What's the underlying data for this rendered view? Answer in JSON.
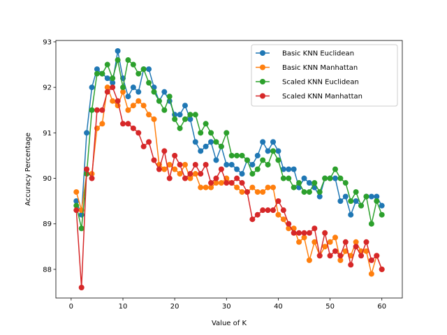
{
  "chart_data": {
    "type": "line",
    "title": "",
    "xlabel": "Value of K",
    "ylabel": "Accuracy Percentage",
    "xlim": [
      -2.95,
      63.95
    ],
    "ylim": [
      87.37,
      93.03
    ],
    "xticks": [
      0,
      10,
      20,
      30,
      40,
      50,
      60
    ],
    "yticks": [
      88,
      89,
      90,
      91,
      92,
      93
    ],
    "grid": false,
    "legend_position": "upper right",
    "x": [
      1,
      2,
      3,
      4,
      5,
      6,
      7,
      8,
      9,
      10,
      11,
      12,
      13,
      14,
      15,
      16,
      17,
      18,
      19,
      20,
      21,
      22,
      23,
      24,
      25,
      26,
      27,
      28,
      29,
      30,
      31,
      32,
      33,
      34,
      35,
      36,
      37,
      38,
      39,
      40,
      41,
      42,
      43,
      44,
      45,
      46,
      47,
      48,
      49,
      50,
      51,
      52,
      53,
      54,
      55,
      56,
      57,
      58,
      59,
      60
    ],
    "series": [
      {
        "name": "Basic KNN Euclidean",
        "color": "#1f77b4",
        "values": [
          89.5,
          89.2,
          91.0,
          92.0,
          92.4,
          92.3,
          92.2,
          92.1,
          92.8,
          92.2,
          91.8,
          92.0,
          91.9,
          92.4,
          92.4,
          92.0,
          91.7,
          91.9,
          91.7,
          91.4,
          91.4,
          91.6,
          91.3,
          90.8,
          90.6,
          90.7,
          90.8,
          90.4,
          90.7,
          90.3,
          90.3,
          90.2,
          90.1,
          90.4,
          90.3,
          90.5,
          90.8,
          90.6,
          90.8,
          90.6,
          90.2,
          90.2,
          90.2,
          89.8,
          90.0,
          89.9,
          89.8,
          89.6,
          90.0,
          90.0,
          90.0,
          89.5,
          89.6,
          89.2,
          89.5,
          89.4,
          89.6,
          89.6,
          89.6,
          89.4
        ]
      },
      {
        "name": "Basic KNN Manhattan",
        "color": "#ff7f0e",
        "values": [
          89.7,
          89.3,
          90.1,
          90.1,
          91.1,
          91.2,
          92.0,
          91.7,
          91.6,
          91.9,
          91.5,
          91.6,
          91.7,
          91.6,
          91.4,
          91.3,
          90.3,
          90.2,
          90.3,
          90.2,
          90.1,
          90.3,
          90.0,
          90.1,
          89.8,
          89.8,
          89.8,
          89.9,
          89.9,
          90.0,
          89.9,
          89.8,
          89.7,
          89.7,
          89.8,
          89.7,
          89.7,
          89.8,
          89.8,
          89.2,
          89.1,
          88.9,
          88.9,
          88.6,
          88.7,
          88.2,
          88.6,
          88.3,
          88.5,
          88.6,
          88.7,
          88.2,
          88.4,
          88.3,
          88.6,
          88.4,
          88.4,
          87.9,
          88.3,
          88.0
        ]
      },
      {
        "name": "Scaled KNN Euclidean",
        "color": "#2ca02c",
        "values": [
          89.4,
          88.9,
          90.1,
          91.5,
          92.3,
          92.3,
          92.5,
          92.2,
          92.6,
          92.0,
          92.6,
          92.5,
          92.3,
          92.4,
          92.1,
          91.9,
          91.7,
          91.5,
          91.8,
          91.3,
          91.1,
          91.3,
          91.4,
          91.4,
          91.0,
          91.2,
          91.0,
          90.8,
          90.7,
          91.0,
          90.5,
          90.5,
          90.5,
          90.4,
          90.1,
          90.2,
          90.4,
          90.3,
          90.6,
          90.4,
          90.0,
          90.0,
          89.8,
          89.9,
          89.7,
          89.7,
          89.9,
          89.7,
          90.0,
          90.0,
          90.2,
          90.0,
          89.9,
          89.5,
          89.7,
          89.4,
          89.6,
          89.0,
          89.5,
          89.2
        ]
      },
      {
        "name": "Scaled KNN Manhattan",
        "color": "#d62728",
        "values": [
          89.3,
          87.6,
          90.2,
          90.0,
          91.5,
          91.5,
          91.9,
          92.0,
          91.7,
          91.2,
          91.2,
          91.1,
          91.0,
          90.7,
          90.8,
          90.4,
          90.2,
          90.6,
          90.0,
          90.5,
          90.3,
          90.0,
          90.1,
          90.3,
          90.1,
          90.3,
          89.9,
          90.0,
          90.2,
          89.9,
          89.9,
          90.0,
          89.9,
          89.7,
          89.1,
          89.2,
          89.3,
          89.3,
          89.3,
          89.5,
          89.3,
          89.0,
          88.8,
          88.8,
          88.8,
          88.8,
          88.9,
          88.3,
          88.8,
          88.3,
          88.4,
          88.3,
          88.6,
          88.1,
          88.5,
          88.3,
          88.6,
          88.2,
          88.3,
          88.0
        ]
      }
    ]
  }
}
